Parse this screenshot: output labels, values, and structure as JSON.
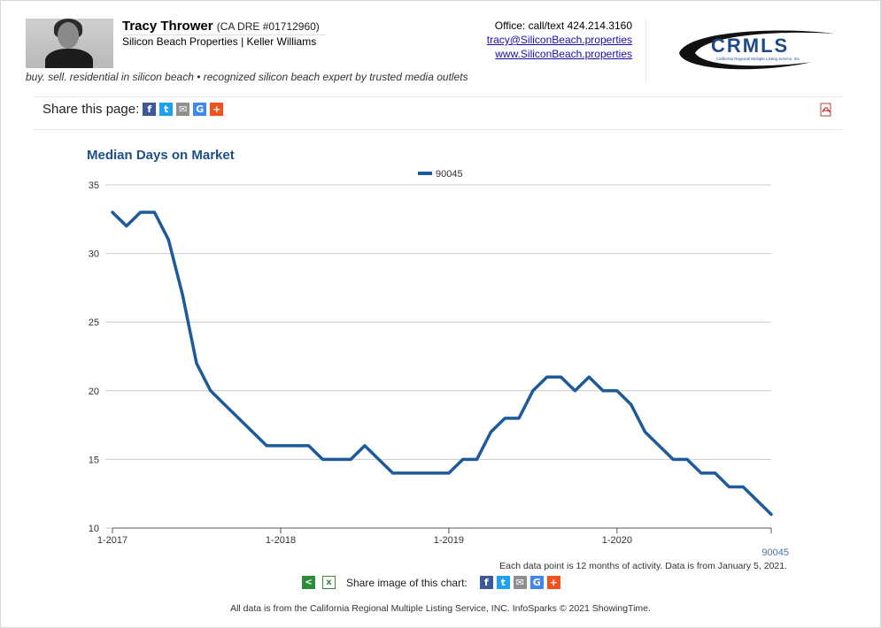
{
  "agent": {
    "name": "Tracy Thrower",
    "license": "(CA DRE #01712960)",
    "brokerage": "Silicon Beach Properties | Keller Williams",
    "tagline": "buy. sell. residential in silicon beach • recognized silicon beach expert by trusted media outlets",
    "office": "Office: call/text 424.214.3160",
    "email": "tracy@SiliconBeach.properties",
    "website": "www.SiliconBeach.properties"
  },
  "logo": {
    "text": "CRMLS",
    "subtext": "California Regional Multiple Listing Service, Inc."
  },
  "share": {
    "label": "Share this page:",
    "icons": [
      "facebook-icon",
      "twitter-icon",
      "email-icon",
      "google-icon",
      "plus-icon"
    ]
  },
  "colors": {
    "series": "#1c5a9a",
    "title": "#1f4f8a",
    "grid": "#cccccc"
  },
  "chart_data": {
    "type": "line",
    "title": "Median Days on Market",
    "ylim": [
      10,
      35
    ],
    "yticks": [
      10,
      15,
      20,
      25,
      30,
      35
    ],
    "xticks": [
      "1-2017",
      "1-2018",
      "1-2019",
      "1-2020"
    ],
    "x_start": "1-2017",
    "grid": true,
    "legend_position": "top-center",
    "series": [
      {
        "name": "90045",
        "values": [
          33,
          32,
          33,
          33,
          31,
          27,
          22,
          20,
          19,
          18,
          17,
          16,
          16,
          16,
          16,
          15,
          15,
          15,
          16,
          15,
          14,
          14,
          14,
          14,
          14,
          15,
          15,
          17,
          18,
          18,
          20,
          21,
          21,
          20,
          21,
          20,
          20,
          19,
          17,
          16,
          15,
          15,
          14,
          14,
          13,
          13,
          12,
          11
        ]
      }
    ]
  },
  "chart_footer": {
    "series_label": "90045",
    "note": "Each data point is 12 months of activity. Data is from January 5, 2021.",
    "share_image_label": "Share image of this chart:"
  },
  "footer": "All data is from the California Regional Multiple Listing Service, INC. InfoSparks © 2021 ShowingTime."
}
